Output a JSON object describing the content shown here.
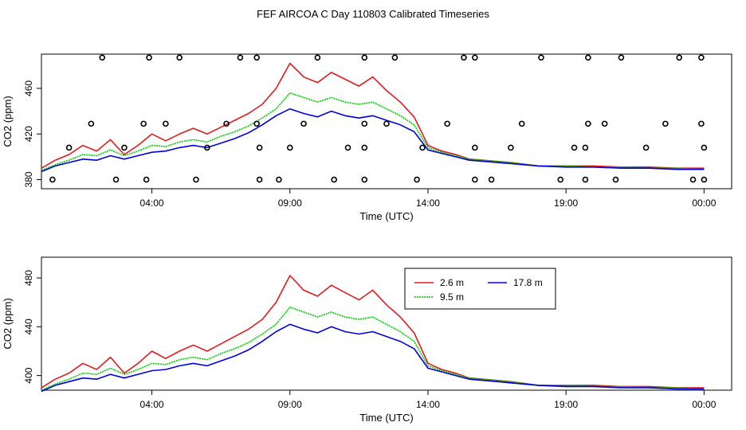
{
  "title": "FEF AIRCOA C  Day 110803  Calibrated Timeseries",
  "colors": {
    "s1": "#e41a1c",
    "s2": "#00cc00",
    "s3": "#0000dd",
    "markers": "#000000",
    "axis": "#000000"
  },
  "chart_data": [
    {
      "type": "line",
      "title": "",
      "xlabel": "Time (UTC)",
      "ylabel": "CO2 (ppm)",
      "xlim": [
        0,
        25
      ],
      "ylim": [
        372,
        490
      ],
      "xticks": [
        4,
        9,
        14,
        19,
        24
      ],
      "xtick_labels": [
        "04:00",
        "09:00",
        "14:00",
        "19:00",
        "00:00"
      ],
      "yticks": [
        380,
        420,
        460
      ],
      "ytick_labels": [
        "380",
        "420",
        "460"
      ],
      "series": [
        {
          "name": "2.6 m",
          "color_key": "s1",
          "dash": "",
          "x": [
            0.0,
            0.5,
            1.0,
            1.5,
            2.0,
            2.5,
            3.0,
            3.5,
            4.0,
            4.5,
            5.0,
            5.5,
            6.0,
            6.5,
            7.0,
            7.5,
            8.0,
            8.5,
            9.0,
            9.5,
            10.0,
            10.5,
            11.0,
            11.5,
            12.0,
            12.5,
            13.0,
            13.5,
            14.0,
            14.5,
            15.0,
            15.5,
            16.0,
            17.0,
            18.0,
            19.0,
            20.0,
            21.0,
            22.0,
            23.0,
            24.0
          ],
          "y": [
            390,
            397,
            402,
            410,
            405,
            415,
            402,
            410,
            420,
            414,
            420,
            425,
            420,
            426,
            432,
            438,
            446,
            460,
            482,
            470,
            465,
            474,
            468,
            462,
            470,
            458,
            448,
            435,
            410,
            405,
            402,
            398,
            397,
            395,
            392,
            392,
            392,
            391,
            391,
            390,
            390
          ]
        },
        {
          "name": "9.5 m",
          "color_key": "s2",
          "dash": "2,1",
          "x": [
            0.0,
            0.5,
            1.0,
            1.5,
            2.0,
            2.5,
            3.0,
            3.5,
            4.0,
            4.5,
            5.0,
            5.5,
            6.0,
            6.5,
            7.0,
            7.5,
            8.0,
            8.5,
            9.0,
            9.5,
            10.0,
            10.5,
            11.0,
            11.5,
            12.0,
            12.5,
            13.0,
            13.5,
            14.0,
            14.5,
            15.0,
            15.5,
            16.0,
            17.0,
            18.0,
            19.0,
            20.0,
            21.0,
            22.0,
            23.0,
            24.0
          ],
          "y": [
            388,
            393,
            397,
            402,
            401,
            406,
            401,
            405,
            410,
            409,
            413,
            415,
            413,
            418,
            422,
            427,
            434,
            442,
            456,
            452,
            448,
            452,
            448,
            446,
            448,
            442,
            436,
            428,
            408,
            404,
            401,
            398,
            397,
            395,
            392,
            392,
            391,
            391,
            390,
            390,
            389
          ]
        },
        {
          "name": "17.8 m",
          "color_key": "s3",
          "dash": "",
          "x": [
            0.0,
            0.5,
            1.0,
            1.5,
            2.0,
            2.5,
            3.0,
            3.5,
            4.0,
            4.5,
            5.0,
            5.5,
            6.0,
            6.5,
            7.0,
            7.5,
            8.0,
            8.5,
            9.0,
            9.5,
            10.0,
            10.5,
            11.0,
            11.5,
            12.0,
            12.5,
            13.0,
            13.5,
            14.0,
            14.5,
            15.0,
            15.5,
            16.0,
            17.0,
            18.0,
            19.0,
            20.0,
            21.0,
            22.0,
            23.0,
            24.0
          ],
          "y": [
            387,
            392,
            395,
            398,
            397,
            401,
            398,
            401,
            404,
            405,
            408,
            410,
            408,
            412,
            416,
            421,
            428,
            436,
            442,
            438,
            435,
            440,
            436,
            434,
            436,
            432,
            428,
            422,
            406,
            403,
            400,
            397,
            396,
            394,
            392,
            391,
            391,
            390,
            390,
            389,
            389
          ]
        }
      ],
      "markers": {
        "x": [
          2.2,
          3.9,
          5.0,
          7.2,
          7.8,
          10.0,
          11.7,
          12.8,
          15.3,
          15.7,
          18.1,
          19.8,
          21.0,
          23.1,
          23.9,
          1.8,
          3.7,
          4.5,
          6.7,
          7.8,
          9.5,
          11.7,
          12.5,
          14.7,
          17.4,
          19.8,
          20.4,
          22.6,
          23.9,
          1.0,
          3.0,
          6.0,
          7.9,
          9.0,
          11.1,
          11.7,
          13.8,
          15.7,
          17.0,
          19.3,
          19.7,
          21.9,
          24.0,
          0.4,
          2.7,
          3.8,
          5.6,
          7.9,
          8.6,
          10.6,
          11.7,
          13.6,
          15.7,
          16.3,
          18.8,
          19.7,
          20.8,
          23.6,
          24.0
        ],
        "y": [
          487,
          487,
          487,
          487,
          487,
          487,
          487,
          487,
          487,
          487,
          487,
          487,
          487,
          487,
          487,
          429,
          429,
          429,
          429,
          429,
          429,
          429,
          429,
          429,
          429,
          429,
          429,
          429,
          429,
          408,
          408,
          408,
          408,
          408,
          408,
          408,
          408,
          408,
          408,
          408,
          408,
          408,
          408,
          380,
          380,
          380,
          380,
          380,
          380,
          380,
          380,
          380,
          380,
          380,
          380,
          380,
          380,
          380,
          380
        ]
      }
    },
    {
      "type": "line",
      "title": "",
      "xlabel": "Time (UTC)",
      "ylabel": "CO2 (ppm)",
      "xlim": [
        0,
        25
      ],
      "ylim": [
        388,
        497
      ],
      "xticks": [
        4,
        9,
        14,
        19,
        24
      ],
      "xtick_labels": [
        "04:00",
        "09:00",
        "14:00",
        "19:00",
        "00:00"
      ],
      "yticks": [
        400,
        440,
        480
      ],
      "ytick_labels": [
        "400",
        "440",
        "480"
      ],
      "legend": {
        "placement": "top-right",
        "entries": [
          "2.6 m",
          "9.5 m",
          "17.8 m"
        ]
      },
      "series": [
        {
          "name": "2.6 m",
          "color_key": "s1",
          "dash": "",
          "x": [
            0.0,
            0.5,
            1.0,
            1.5,
            2.0,
            2.5,
            3.0,
            3.5,
            4.0,
            4.5,
            5.0,
            5.5,
            6.0,
            6.5,
            7.0,
            7.5,
            8.0,
            8.5,
            9.0,
            9.5,
            10.0,
            10.5,
            11.0,
            11.5,
            12.0,
            12.5,
            13.0,
            13.5,
            14.0,
            14.5,
            15.0,
            15.5,
            16.0,
            17.0,
            18.0,
            19.0,
            20.0,
            21.0,
            22.0,
            23.0,
            24.0
          ],
          "y": [
            390,
            397,
            402,
            410,
            405,
            415,
            402,
            410,
            420,
            414,
            420,
            425,
            420,
            426,
            432,
            438,
            446,
            460,
            482,
            470,
            465,
            474,
            468,
            462,
            470,
            458,
            448,
            435,
            410,
            405,
            402,
            398,
            397,
            395,
            392,
            392,
            392,
            391,
            391,
            390,
            390
          ]
        },
        {
          "name": "9.5 m",
          "color_key": "s2",
          "dash": "2,1",
          "x": [
            0.0,
            0.5,
            1.0,
            1.5,
            2.0,
            2.5,
            3.0,
            3.5,
            4.0,
            4.5,
            5.0,
            5.5,
            6.0,
            6.5,
            7.0,
            7.5,
            8.0,
            8.5,
            9.0,
            9.5,
            10.0,
            10.5,
            11.0,
            11.5,
            12.0,
            12.5,
            13.0,
            13.5,
            14.0,
            14.5,
            15.0,
            15.5,
            16.0,
            17.0,
            18.0,
            19.0,
            20.0,
            21.0,
            22.0,
            23.0,
            24.0
          ],
          "y": [
            388,
            393,
            397,
            402,
            401,
            406,
            401,
            405,
            410,
            409,
            413,
            415,
            413,
            418,
            422,
            427,
            434,
            442,
            456,
            452,
            448,
            452,
            448,
            446,
            448,
            442,
            436,
            428,
            408,
            404,
            401,
            398,
            397,
            395,
            392,
            392,
            391,
            391,
            390,
            390,
            389
          ]
        },
        {
          "name": "17.8 m",
          "color_key": "s3",
          "dash": "",
          "x": [
            0.0,
            0.5,
            1.0,
            1.5,
            2.0,
            2.5,
            3.0,
            3.5,
            4.0,
            4.5,
            5.0,
            5.5,
            6.0,
            6.5,
            7.0,
            7.5,
            8.0,
            8.5,
            9.0,
            9.5,
            10.0,
            10.5,
            11.0,
            11.5,
            12.0,
            12.5,
            13.0,
            13.5,
            14.0,
            14.5,
            15.0,
            15.5,
            16.0,
            17.0,
            18.0,
            19.0,
            20.0,
            21.0,
            22.0,
            23.0,
            24.0
          ],
          "y": [
            387,
            392,
            395,
            398,
            397,
            401,
            398,
            401,
            404,
            405,
            408,
            410,
            408,
            412,
            416,
            421,
            428,
            436,
            442,
            438,
            435,
            440,
            436,
            434,
            436,
            432,
            428,
            422,
            406,
            403,
            400,
            397,
            396,
            394,
            392,
            391,
            391,
            390,
            390,
            389,
            389
          ]
        }
      ]
    }
  ]
}
